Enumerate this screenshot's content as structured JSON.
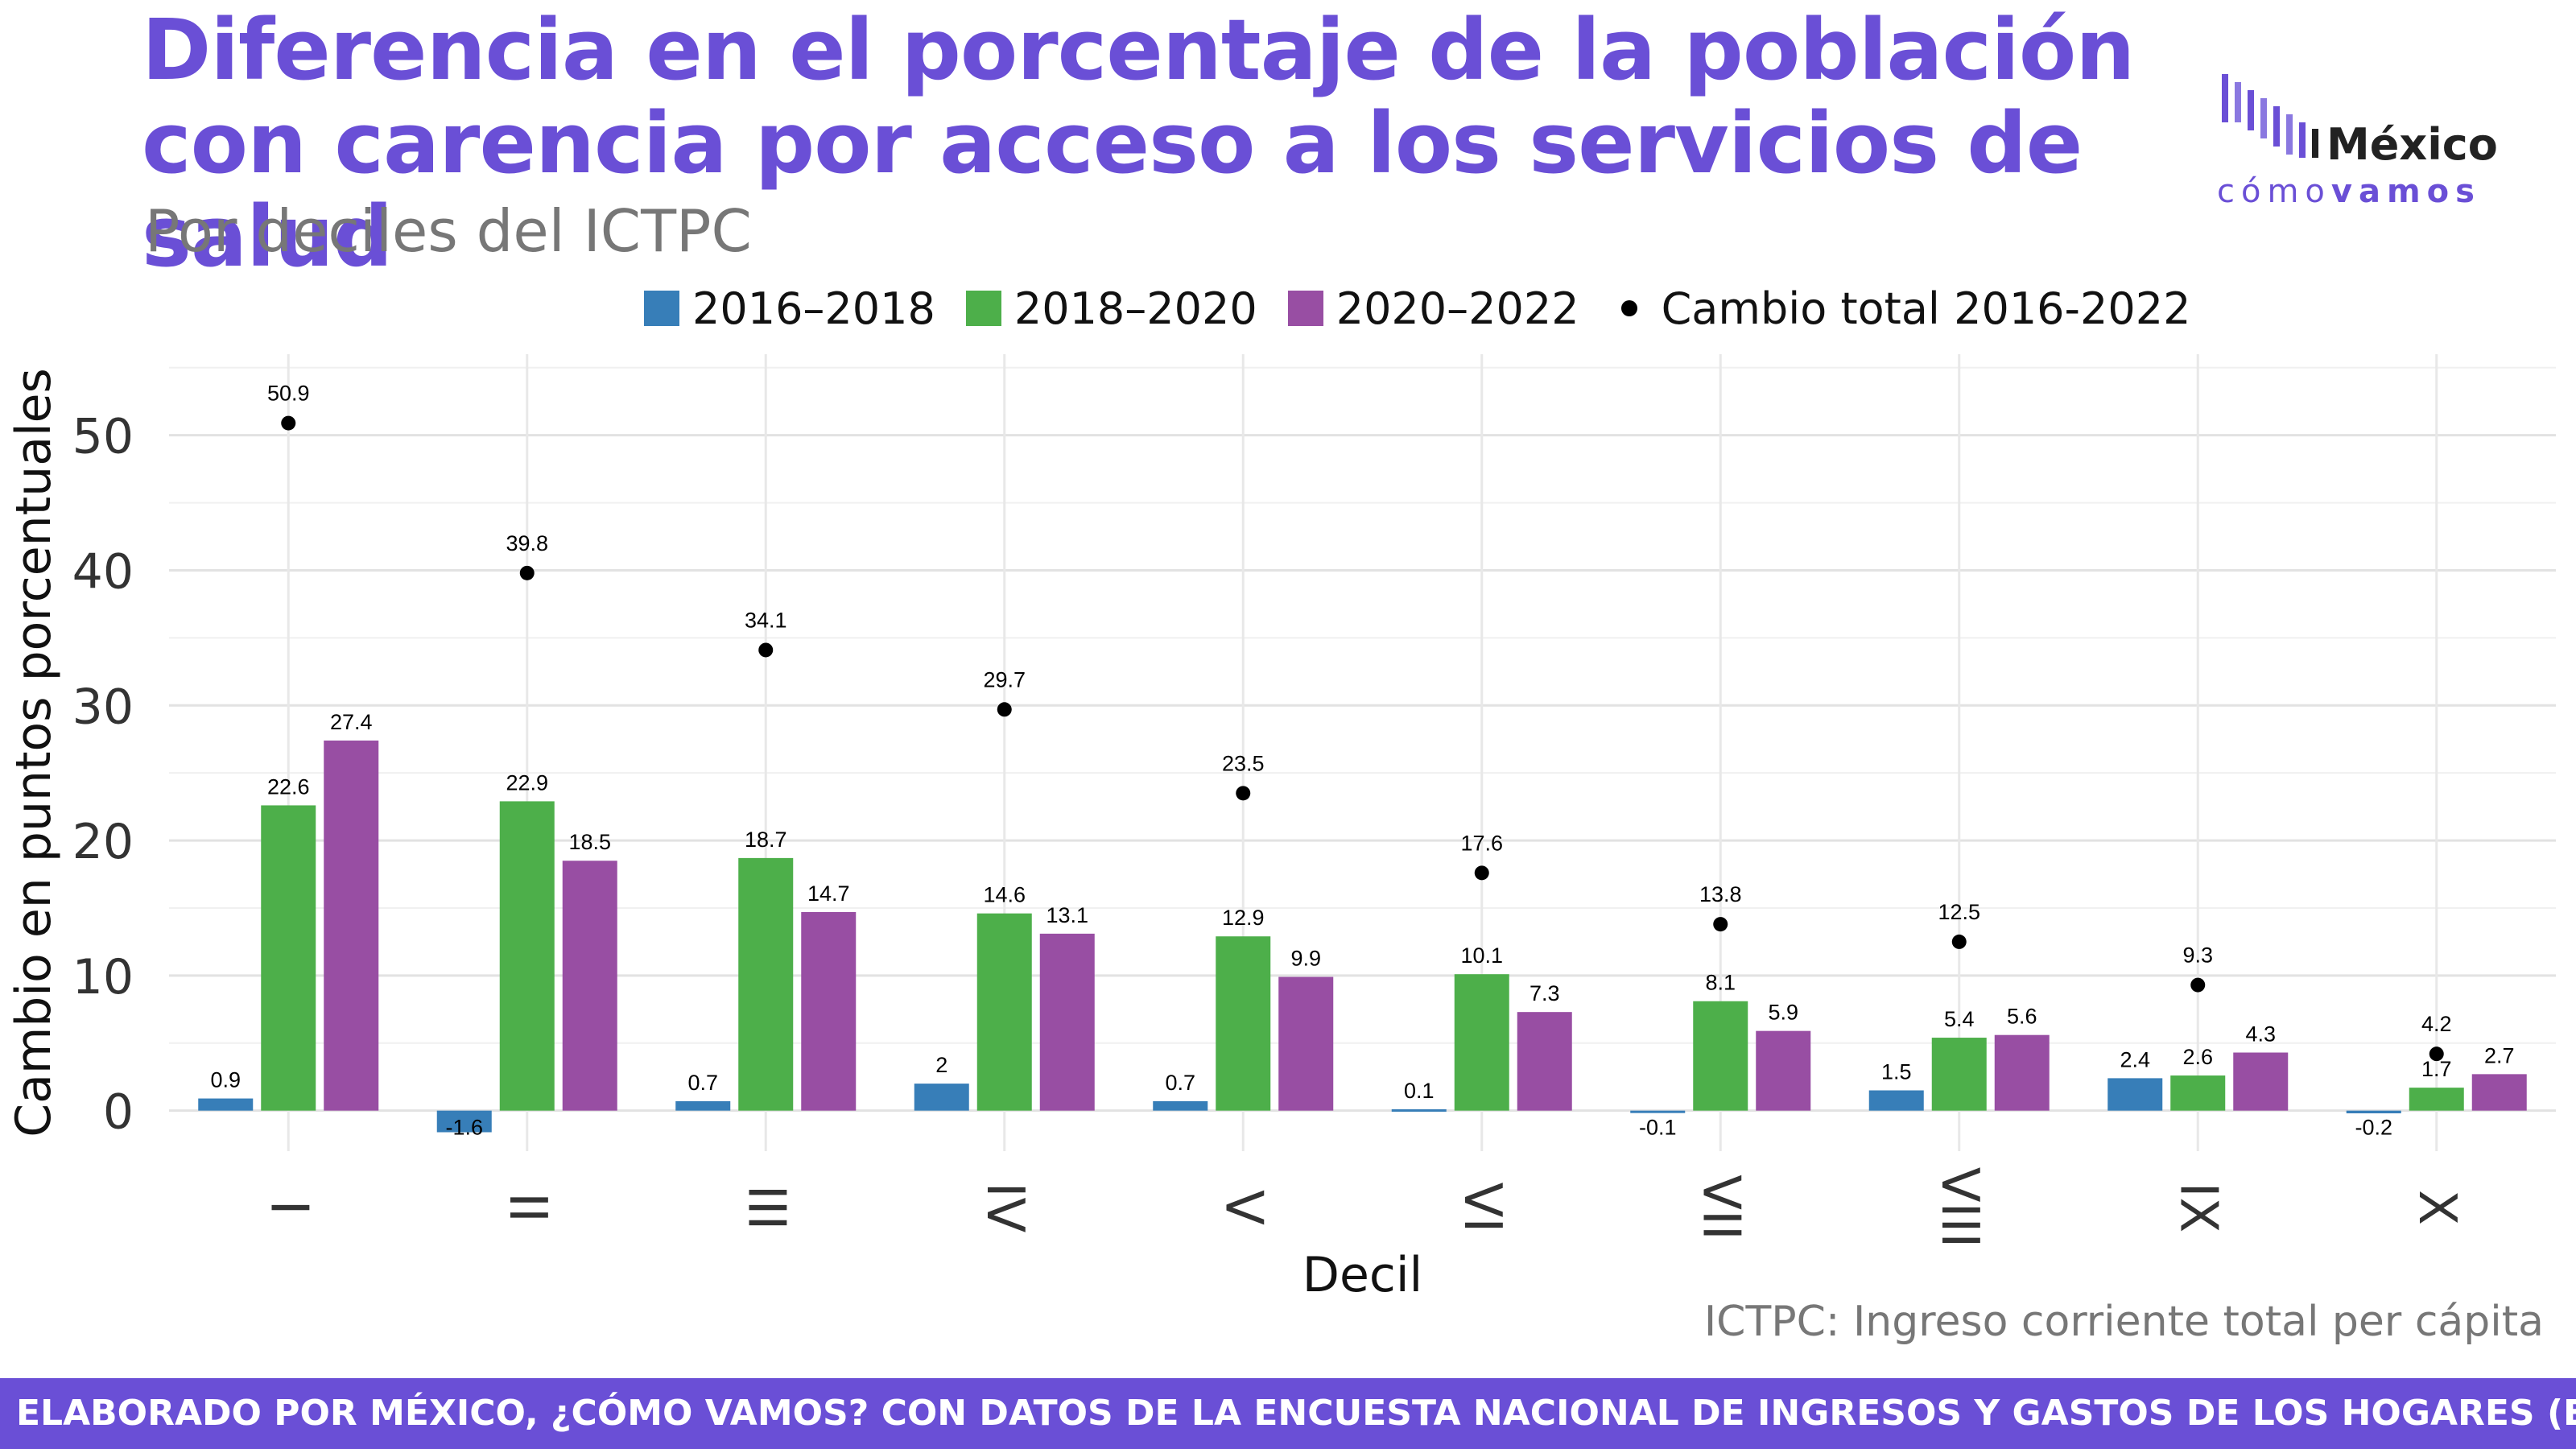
{
  "header": {
    "title": "Diferencia en el porcentaje de la población con carencia por acceso a los servicios de salud",
    "subtitle": "Por deciles del ICTPC"
  },
  "logo": {
    "main": "México",
    "sub_light": "cómo",
    "sub_bold": "vamos"
  },
  "note": "ICTPC: Ingreso corriente total per cápita",
  "footer": "ELABORADO POR MÉXICO, ¿CÓMO VAMOS? CON DATOS DE LA ENCUESTA NACIONAL DE INGRESOS Y GASTOS DE LOS HOGARES (ENIGH) DEL INEGI",
  "colors": {
    "accent": "#6a4fd6",
    "s1": "#377eb8",
    "s2": "#4daf4a",
    "s3": "#984ea3",
    "total": "#000000"
  },
  "chart_data": {
    "type": "bar",
    "xlabel": "Decil",
    "ylabel": "Cambio en puntos porcentuales",
    "ylim": [
      -3,
      56
    ],
    "yticks": [
      0,
      10,
      20,
      30,
      40,
      50
    ],
    "grid": true,
    "legend_position": "top",
    "categories": [
      "I",
      "II",
      "III",
      "IV",
      "V",
      "VI",
      "VII",
      "VIII",
      "IX",
      "X"
    ],
    "series": [
      {
        "name": "2016–2018",
        "values": [
          0.9,
          -1.6,
          0.7,
          2,
          0.7,
          0.1,
          -0.1,
          1.5,
          2.4,
          -0.2
        ],
        "color": "#377eb8"
      },
      {
        "name": "2018–2020",
        "values": [
          22.6,
          22.9,
          18.7,
          14.6,
          12.9,
          10.1,
          8.1,
          5.4,
          2.6,
          1.7
        ],
        "color": "#4daf4a"
      },
      {
        "name": "2020–2022",
        "values": [
          27.4,
          18.5,
          14.7,
          13.1,
          9.9,
          7.3,
          5.9,
          5.6,
          4.3,
          2.7
        ],
        "color": "#984ea3"
      }
    ],
    "total": {
      "name": "Cambio total 2016-2022",
      "values": [
        50.9,
        39.8,
        34.1,
        29.7,
        23.5,
        17.6,
        13.8,
        12.5,
        9.3,
        4.2
      ]
    }
  }
}
